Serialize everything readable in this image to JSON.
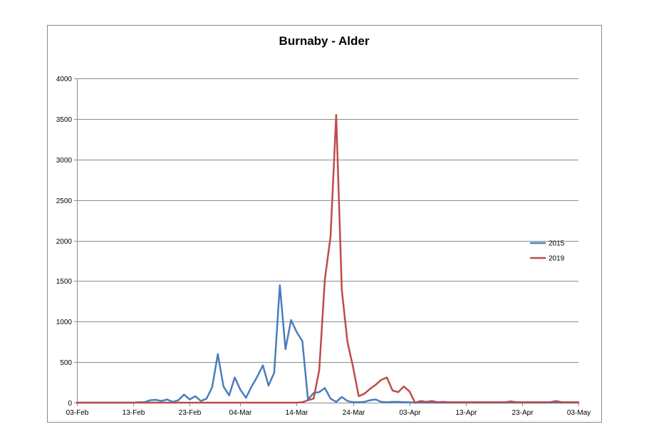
{
  "chart_data": {
    "type": "line",
    "title": "Burnaby - Alder",
    "xlabel": "",
    "ylabel": "",
    "ylim": [
      0,
      4000
    ],
    "yticks": [
      0,
      500,
      1000,
      1500,
      2000,
      2500,
      3000,
      3500,
      4000
    ],
    "xlim": [
      "2019-02-03",
      "2019-05-03"
    ],
    "xticks": [
      {
        "date": "2019-02-03",
        "label": "03-Feb"
      },
      {
        "date": "2019-02-13",
        "label": "13-Feb"
      },
      {
        "date": "2019-02-23",
        "label": "23-Feb"
      },
      {
        "date": "2019-03-04",
        "label": "04-Mar"
      },
      {
        "date": "2019-03-14",
        "label": "14-Mar"
      },
      {
        "date": "2019-03-24",
        "label": "24-Mar"
      },
      {
        "date": "2019-04-03",
        "label": "03-Apr"
      },
      {
        "date": "2019-04-13",
        "label": "13-Apr"
      },
      {
        "date": "2019-04-23",
        "label": "23-Apr"
      },
      {
        "date": "2019-05-03",
        "label": "03-May"
      }
    ],
    "grid": true,
    "legend_position": "right",
    "series": [
      {
        "name": "2015",
        "color": "#4a7ebb",
        "points": [
          [
            "2019-02-03",
            0
          ],
          [
            "2019-02-13",
            0
          ],
          [
            "2019-02-14",
            5
          ],
          [
            "2019-02-15",
            5
          ],
          [
            "2019-02-16",
            30
          ],
          [
            "2019-02-17",
            35
          ],
          [
            "2019-02-18",
            20
          ],
          [
            "2019-02-19",
            40
          ],
          [
            "2019-02-20",
            10
          ],
          [
            "2019-02-21",
            30
          ],
          [
            "2019-02-22",
            100
          ],
          [
            "2019-02-23",
            40
          ],
          [
            "2019-02-24",
            80
          ],
          [
            "2019-02-25",
            20
          ],
          [
            "2019-02-26",
            50
          ],
          [
            "2019-02-27",
            190
          ],
          [
            "2019-02-28",
            600
          ],
          [
            "2019-03-01",
            200
          ],
          [
            "2019-03-02",
            90
          ],
          [
            "2019-03-03",
            310
          ],
          [
            "2019-03-04",
            160
          ],
          [
            "2019-03-05",
            60
          ],
          [
            "2019-03-06",
            200
          ],
          [
            "2019-03-07",
            320
          ],
          [
            "2019-03-08",
            460
          ],
          [
            "2019-03-09",
            210
          ],
          [
            "2019-03-10",
            370
          ],
          [
            "2019-03-11",
            1450
          ],
          [
            "2019-03-12",
            660
          ],
          [
            "2019-03-13",
            1020
          ],
          [
            "2019-03-14",
            870
          ],
          [
            "2019-03-15",
            760
          ],
          [
            "2019-03-16",
            40
          ],
          [
            "2019-03-17",
            120
          ],
          [
            "2019-03-18",
            130
          ],
          [
            "2019-03-19",
            180
          ],
          [
            "2019-03-20",
            50
          ],
          [
            "2019-03-21",
            10
          ],
          [
            "2019-03-22",
            70
          ],
          [
            "2019-03-23",
            20
          ],
          [
            "2019-03-24",
            5
          ],
          [
            "2019-03-25",
            5
          ],
          [
            "2019-03-26",
            10
          ],
          [
            "2019-03-27",
            30
          ],
          [
            "2019-03-28",
            40
          ],
          [
            "2019-03-29",
            10
          ],
          [
            "2019-03-30",
            5
          ],
          [
            "2019-03-31",
            10
          ],
          [
            "2019-04-01",
            10
          ],
          [
            "2019-04-02",
            5
          ],
          [
            "2019-04-03",
            5
          ],
          [
            "2019-04-04",
            0
          ],
          [
            "2019-04-13",
            0
          ],
          [
            "2019-04-23",
            0
          ],
          [
            "2019-05-03",
            0
          ]
        ]
      },
      {
        "name": "2019",
        "color": "#be4b48",
        "points": [
          [
            "2019-02-03",
            0
          ],
          [
            "2019-03-14",
            0
          ],
          [
            "2019-03-15",
            5
          ],
          [
            "2019-03-16",
            30
          ],
          [
            "2019-03-17",
            50
          ],
          [
            "2019-03-18",
            400
          ],
          [
            "2019-03-19",
            1520
          ],
          [
            "2019-03-20",
            2050
          ],
          [
            "2019-03-21",
            3550
          ],
          [
            "2019-03-22",
            1390
          ],
          [
            "2019-03-23",
            750
          ],
          [
            "2019-03-24",
            440
          ],
          [
            "2019-03-25",
            80
          ],
          [
            "2019-03-26",
            110
          ],
          [
            "2019-03-27",
            170
          ],
          [
            "2019-03-28",
            220
          ],
          [
            "2019-03-29",
            280
          ],
          [
            "2019-03-30",
            310
          ],
          [
            "2019-03-31",
            150
          ],
          [
            "2019-04-01",
            130
          ],
          [
            "2019-04-02",
            200
          ],
          [
            "2019-04-03",
            140
          ],
          [
            "2019-04-04",
            0
          ],
          [
            "2019-04-05",
            20
          ],
          [
            "2019-04-06",
            10
          ],
          [
            "2019-04-07",
            20
          ],
          [
            "2019-04-08",
            5
          ],
          [
            "2019-04-09",
            10
          ],
          [
            "2019-04-10",
            5
          ],
          [
            "2019-04-20",
            5
          ],
          [
            "2019-04-21",
            15
          ],
          [
            "2019-04-22",
            5
          ],
          [
            "2019-04-28",
            5
          ],
          [
            "2019-04-29",
            20
          ],
          [
            "2019-04-30",
            5
          ],
          [
            "2019-05-03",
            5
          ]
        ]
      }
    ]
  }
}
